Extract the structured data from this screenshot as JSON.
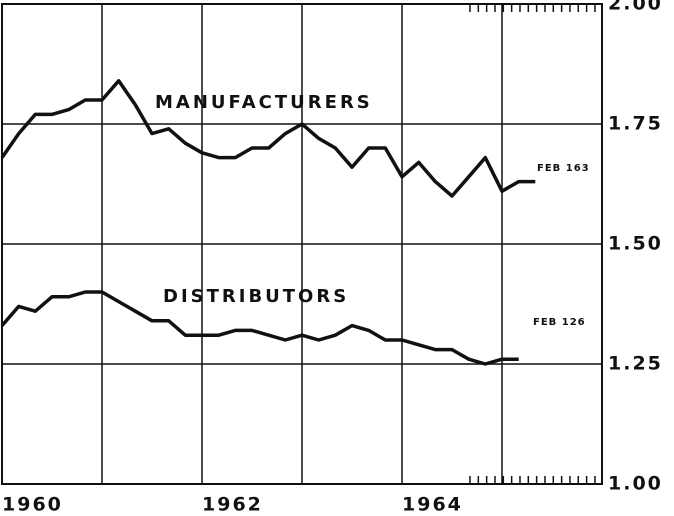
{
  "chart_data": {
    "type": "line",
    "x": [
      1960,
      1960.167,
      1960.333,
      1960.5,
      1960.667,
      1960.833,
      1961,
      1961.167,
      1961.333,
      1961.5,
      1961.667,
      1961.833,
      1962,
      1962.167,
      1962.333,
      1962.5,
      1962.667,
      1962.833,
      1963,
      1963.167,
      1963.333,
      1963.5,
      1963.667,
      1963.833,
      1964,
      1964.167,
      1964.333,
      1964.5,
      1964.667,
      1964.833,
      1965,
      1965.167,
      1965.333
    ],
    "series": [
      {
        "name": "MANUFACTURERS",
        "color": "#111111",
        "values": [
          1.68,
          1.73,
          1.77,
          1.77,
          1.78,
          1.8,
          1.8,
          1.84,
          1.79,
          1.73,
          1.74,
          1.71,
          1.69,
          1.68,
          1.68,
          1.7,
          1.7,
          1.73,
          1.75,
          1.72,
          1.7,
          1.66,
          1.7,
          1.7,
          1.64,
          1.67,
          1.63,
          1.6,
          1.64,
          1.68,
          1.61,
          1.63,
          1.63
        ]
      },
      {
        "name": "DISTRIBUTORS",
        "color": "#111111",
        "values": [
          1.33,
          1.37,
          1.36,
          1.39,
          1.39,
          1.4,
          1.4,
          1.38,
          1.36,
          1.34,
          1.34,
          1.31,
          1.31,
          1.31,
          1.32,
          1.32,
          1.31,
          1.3,
          1.31,
          1.3,
          1.31,
          1.33,
          1.32,
          1.3,
          1.3,
          1.29,
          1.28,
          1.28,
          1.26,
          1.25,
          1.26,
          1.26,
          null
        ]
      }
    ],
    "annotations": [
      "FEB 163",
      "FEB 126"
    ],
    "xlim": [
      1960,
      1966
    ],
    "xticks": [
      1960,
      1962,
      1964
    ],
    "ylim": [
      1,
      2
    ],
    "yticks": [
      {
        "value": 1,
        "label": "1.00"
      },
      1.25,
      {
        "value": 1.5,
        "label": "1.50"
      },
      1.75,
      {
        "value": 2,
        "label": "2.00"
      }
    ],
    "grid": true
  }
}
